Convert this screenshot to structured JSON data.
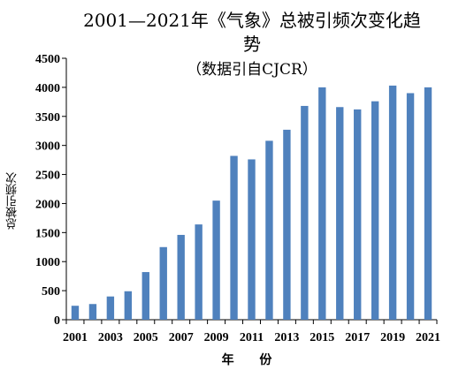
{
  "chart_data": {
    "type": "bar",
    "title_line1": "2001—2021年《气象》总被引频次变化趋",
    "title_line2": "势",
    "subtitle": "（数据引自CJCR）",
    "xlabel": "年  份",
    "ylabel": "总被引频次",
    "ylim": [
      0,
      4500
    ],
    "yticks": [
      0,
      500,
      1000,
      1500,
      2000,
      2500,
      3000,
      3500,
      4000,
      4500
    ],
    "xtick_labels": [
      "2001",
      "2003",
      "2005",
      "2007",
      "2009",
      "2011",
      "2013",
      "2015",
      "2017",
      "2019",
      "2021"
    ],
    "categories": [
      "2001",
      "2002",
      "2003",
      "2004",
      "2005",
      "2006",
      "2007",
      "2008",
      "2009",
      "2010",
      "2011",
      "2012",
      "2013",
      "2014",
      "2015",
      "2016",
      "2017",
      "2018",
      "2019",
      "2020",
      "2021"
    ],
    "values": [
      240,
      270,
      400,
      490,
      820,
      1250,
      1460,
      1640,
      2050,
      2820,
      2760,
      3080,
      3270,
      3680,
      4000,
      3660,
      3620,
      3760,
      4030,
      3900,
      4000
    ],
    "bar_color": "#4f81bd",
    "grid": false
  }
}
